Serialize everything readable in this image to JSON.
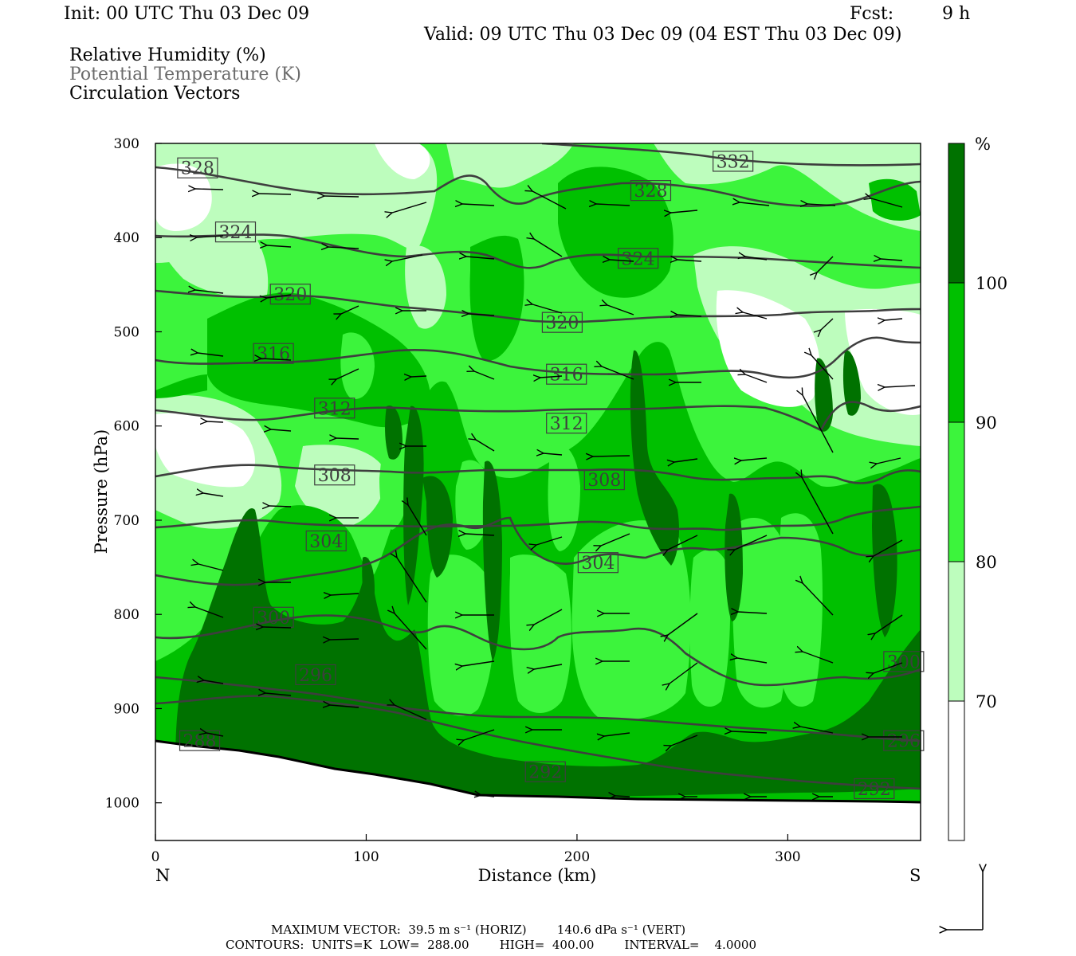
{
  "header": {
    "init": "Init: 00 UTC Thu 03 Dec 09",
    "fcst_label": "Fcst:",
    "fcst_value": "9 h",
    "valid": "Valid: 09 UTC Thu 03 Dec 09 (04 EST Thu 03 Dec 09)"
  },
  "fields": {
    "rh": "Relative Humidity (%)",
    "theta": "Potential Temperature (K)",
    "vectors": "Circulation Vectors"
  },
  "footer": {
    "max_vector": "MAXIMUM VECTOR:  39.5 m s⁻¹ (HORIZ)        140.6 dPa s⁻¹ (VERT)",
    "contours": "CONTOURS:  UNITS=K  LOW=  288.00        HIGH=  400.00        INTERVAL=    4.0000"
  },
  "colors": {
    "rh_70_80": "#bdfdbd",
    "rh_80_90": "#3cf43c",
    "rh_90_100": "#00c000",
    "rh_100": "#007200",
    "theta_line": "#3e3e3e",
    "ground": "#ffffff"
  },
  "chart_data": {
    "type": "heatmap",
    "xlabel": "Distance (km)",
    "ylabel": "Pressure (hPa)",
    "xlim": [
      0,
      363
    ],
    "ylim": [
      1040,
      300
    ],
    "x_ticks": [
      0,
      100,
      200,
      300
    ],
    "y_ticks": [
      300,
      400,
      500,
      600,
      700,
      800,
      900,
      1000
    ],
    "x_end_labels": {
      "left": "N",
      "right": "S"
    },
    "colorbar": {
      "unit": "%",
      "levels": [
        70,
        80,
        90,
        100
      ]
    },
    "isentrope_labels": [
      {
        "text": "328",
        "x": 20,
        "p": 326
      },
      {
        "text": "332",
        "x": 274,
        "p": 319
      },
      {
        "text": "328",
        "x": 235,
        "p": 350
      },
      {
        "text": "324",
        "x": 38,
        "p": 394
      },
      {
        "text": "324",
        "x": 229,
        "p": 422
      },
      {
        "text": "320",
        "x": 64,
        "p": 460
      },
      {
        "text": "320",
        "x": 193,
        "p": 490
      },
      {
        "text": "316",
        "x": 56,
        "p": 523
      },
      {
        "text": "316",
        "x": 195,
        "p": 545
      },
      {
        "text": "312",
        "x": 85,
        "p": 581
      },
      {
        "text": "312",
        "x": 195,
        "p": 597
      },
      {
        "text": "308",
        "x": 85,
        "p": 652
      },
      {
        "text": "308",
        "x": 213,
        "p": 657
      },
      {
        "text": "304",
        "x": 81,
        "p": 722
      },
      {
        "text": "304",
        "x": 210,
        "p": 745
      },
      {
        "text": "300",
        "x": 56,
        "p": 803
      },
      {
        "text": "300",
        "x": 355,
        "p": 850
      },
      {
        "text": "296",
        "x": 76,
        "p": 864
      },
      {
        "text": "296",
        "x": 355,
        "p": 934
      },
      {
        "text": "288",
        "x": 21,
        "p": 934
      },
      {
        "text": "292",
        "x": 185,
        "p": 967
      },
      {
        "text": "292",
        "x": 341,
        "p": 985
      }
    ]
  }
}
